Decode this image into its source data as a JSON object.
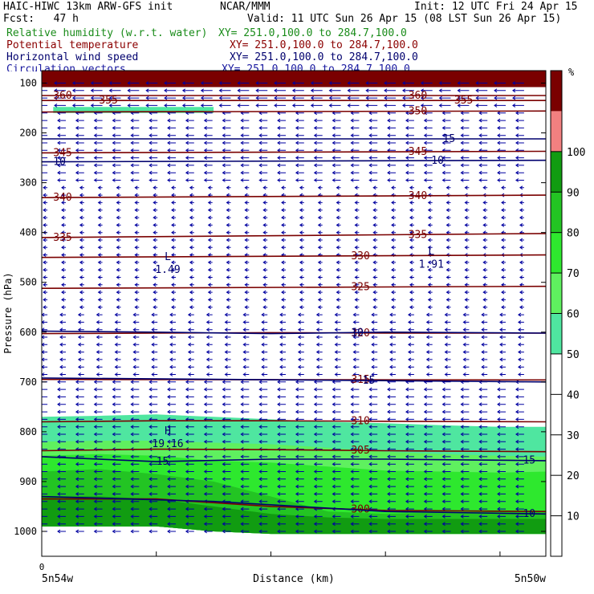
{
  "header": {
    "title_left": "HAIC-HIWC 13km ARW-GFS init",
    "title_center": "NCAR/MMM",
    "init": "Init: 12 UTC Fri 24 Apr 15",
    "fcst": "Fcst:   47 h",
    "valid": "Valid: 11 UTC Sun 26 Apr 15 (08 LST Sun 26 Apr 15)",
    "fields": [
      {
        "name": "Relative humidity (w.r.t. water)",
        "xy": "XY= 251.0,100.0 to 284.7,100.0",
        "color": "#1a8c1a"
      },
      {
        "name": "Potential temperature",
        "xy": "XY= 251.0,100.0 to 284.7,100.0",
        "color": "#8b0000"
      },
      {
        "name": "Horizontal wind speed",
        "xy": "XY= 251.0,100.0 to 284.7,100.0",
        "color": "#00006e"
      },
      {
        "name": "Circulation vectors",
        "xy": "XY= 251.0,100.0 to 284.7,100.0",
        "color": "#1a1aa0"
      }
    ]
  },
  "chart_data": {
    "type": "heatmap",
    "xlabel": "Distance (km)",
    "ylabel": "Pressure (hPa)",
    "x_tick_zero": "0",
    "x_start_label": "5n54w",
    "x_end_label": "5n50w",
    "x_range_km": [
      0,
      440
    ],
    "y_ticks": [
      100,
      200,
      300,
      400,
      500,
      600,
      700,
      800,
      900,
      1000
    ],
    "y_range_hPa": [
      75,
      1050
    ],
    "colorbar": {
      "unit": "%",
      "ticks": [
        10,
        20,
        30,
        40,
        50,
        60,
        70,
        80,
        90,
        100
      ],
      "bins": [
        {
          "from": 0,
          "to": 50,
          "color": "#ffffff"
        },
        {
          "from": 50,
          "to": 60,
          "color": "#4fe6a0"
        },
        {
          "from": 60,
          "to": 70,
          "color": "#5ff05f"
        },
        {
          "from": 70,
          "to": 80,
          "color": "#2ee82e"
        },
        {
          "from": 80,
          "to": 90,
          "color": "#23c423"
        },
        {
          "from": 90,
          "to": 100,
          "color": "#119c11"
        },
        {
          "from": 100,
          "to": 110,
          "color": "#f28080"
        },
        {
          "from": 110,
          "to": 120,
          "color": "#7a0000"
        }
      ]
    },
    "rh_layers": [
      {
        "bin": 50,
        "x": [
          0,
          50,
          100,
          150,
          200,
          250,
          300,
          350,
          400,
          440
        ],
        "top": [
          770,
          768,
          765,
          770,
          775,
          780,
          783,
          787,
          790,
          790
        ],
        "bottom": [
          990,
          990,
          990,
          1000,
          1005,
          1005,
          1005,
          1005,
          1005,
          1005
        ]
      },
      {
        "bin": 60,
        "x": [
          0,
          50,
          100,
          150,
          200,
          250,
          300,
          350,
          400,
          440
        ],
        "top": [
          820,
          818,
          818,
          822,
          825,
          832,
          840,
          845,
          848,
          850
        ],
        "bottom": [
          990,
          990,
          990,
          1000,
          1005,
          1005,
          1005,
          1005,
          1005,
          1005
        ]
      },
      {
        "bin": 70,
        "x": [
          0,
          50,
          100,
          150,
          200,
          250,
          300,
          350,
          400,
          440
        ],
        "top": [
          848,
          845,
          848,
          858,
          862,
          870,
          878,
          880,
          882,
          880
        ],
        "bottom": [
          990,
          990,
          990,
          1000,
          1005,
          1005,
          1005,
          1005,
          1005,
          1005
        ]
      },
      {
        "bin": 80,
        "x": [
          0,
          50,
          100,
          150,
          200,
          250,
          300,
          350,
          400,
          440
        ],
        "top": [
          880,
          875,
          885,
          900,
          930,
          960,
          965,
          962,
          960,
          960
        ],
        "bottom": [
          990,
          990,
          990,
          1000,
          1005,
          1005,
          1005,
          1005,
          1005,
          1005
        ]
      },
      {
        "bin": 90,
        "x": [
          0,
          50,
          100,
          150,
          200,
          250,
          300,
          350,
          400,
          440
        ],
        "top": [
          930,
          930,
          935,
          950,
          965,
          972,
          975,
          975,
          975,
          975
        ],
        "bottom": [
          990,
          990,
          990,
          1000,
          1005,
          1005,
          1005,
          1005,
          1005,
          1005
        ]
      },
      {
        "bin": 110,
        "x": [
          0,
          440
        ],
        "top": [
          75,
          75
        ],
        "bottom": [
          108,
          108
        ]
      },
      {
        "bin": 50,
        "x": [
          10,
          150
        ],
        "top": [
          148,
          148
        ],
        "bottom": [
          160,
          160
        ]
      }
    ],
    "theta_contours": [
      {
        "level": 300,
        "labels": [
          300
        ],
        "label_x": [
          270
        ],
        "x": [
          0,
          100,
          200,
          300,
          440
        ],
        "p": [
          935,
          935,
          950,
          958,
          960
        ]
      },
      {
        "level": 305,
        "labels": [
          305
        ],
        "label_x": [
          270
        ],
        "x": [
          0,
          100,
          200,
          300,
          440
        ],
        "p": [
          838,
          835,
          836,
          838,
          840
        ]
      },
      {
        "level": 310,
        "labels": [
          310
        ],
        "label_x": [
          270
        ],
        "x": [
          0,
          100,
          200,
          300,
          440
        ],
        "p": [
          780,
          778,
          778,
          779,
          780
        ]
      },
      {
        "level": 315,
        "labels": [
          315
        ],
        "label_x": [
          270
        ],
        "x": [
          0,
          440
        ],
        "p": [
          695,
          696
        ]
      },
      {
        "level": 320,
        "labels": [
          320
        ],
        "label_x": [
          270
        ],
        "x": [
          0,
          100,
          200,
          300,
          440
        ],
        "p": [
          603,
          602,
          601,
          602,
          602
        ]
      },
      {
        "level": 325,
        "labels": [
          325
        ],
        "label_x": [
          270
        ],
        "x": [
          0,
          440
        ],
        "p": [
          512,
          508
        ]
      },
      {
        "level": 330,
        "labels": [
          330
        ],
        "label_x": [
          270
        ],
        "x": [
          0,
          440
        ],
        "p": [
          450,
          445
        ]
      },
      {
        "level": 335,
        "labels": [
          335,
          335
        ],
        "label_x": [
          10,
          320
        ],
        "x": [
          0,
          440
        ],
        "p": [
          410,
          402
        ]
      },
      {
        "level": 340,
        "labels": [
          340,
          340
        ],
        "label_x": [
          10,
          320
        ],
        "x": [
          0,
          440
        ],
        "p": [
          330,
          325
        ]
      },
      {
        "level": 345,
        "labels": [
          345,
          345
        ],
        "label_x": [
          10,
          320
        ],
        "x": [
          0,
          440
        ],
        "p": [
          240,
          237
        ]
      },
      {
        "level": 350,
        "labels": [
          350
        ],
        "label_x": [
          320
        ],
        "x": [
          0,
          440
        ],
        "p": [
          158,
          156
        ]
      },
      {
        "level": 355,
        "labels": [
          355,
          355
        ],
        "label_x": [
          50,
          360
        ],
        "x": [
          0,
          440
        ],
        "p": [
          135,
          135
        ]
      },
      {
        "level": 360,
        "labels": [
          360,
          360
        ],
        "label_x": [
          10,
          320
        ],
        "x": [
          0,
          440
        ],
        "p": [
          125,
          125
        ]
      }
    ],
    "wind_speed_contours": [
      {
        "level": 10,
        "labels": [
          10
        ],
        "label_x": [
          420
        ],
        "x": [
          0,
          150,
          300,
          440
        ],
        "p": [
          930,
          940,
          960,
          965
        ]
      },
      {
        "level": 15,
        "labels": [
          15,
          15
        ],
        "label_x": [
          100,
          420
        ],
        "x": [
          0,
          100,
          200,
          300,
          440
        ],
        "p": [
          850,
          860,
          855,
          855,
          858
        ]
      },
      {
        "level": 10,
        "labels": [
          10
        ],
        "label_x": [
          270
        ],
        "x": [
          0,
          100,
          200,
          300,
          440
        ],
        "p": [
          598,
          600,
          603,
          600,
          602
        ]
      },
      {
        "level": 15,
        "labels": [
          15
        ],
        "label_x": [
          280
        ],
        "x": [
          0,
          440
        ],
        "p": [
          692,
          700
        ]
      },
      {
        "level": 10,
        "labels": [
          10,
          10
        ],
        "label_x": [
          10,
          340
        ],
        "x": [
          0,
          440
        ],
        "p": [
          258,
          255
        ]
      },
      {
        "level": 15,
        "labels": [
          15
        ],
        "label_x": [
          350
        ],
        "x": [
          0,
          440
        ],
        "p": [
          212,
          212
        ]
      }
    ],
    "extrema": [
      {
        "symbol": "L",
        "value": "1.49",
        "x": 110,
        "p": 455
      },
      {
        "symbol": "L",
        "value": "1.91",
        "x": 340,
        "p": 445
      },
      {
        "symbol": "H",
        "value": "19.16",
        "x": 110,
        "p": 805
      }
    ],
    "vectors": {
      "note": "circulation vectors point westward",
      "layers": [
        {
          "p_from": 85,
          "p_to": 160,
          "u": -14
        },
        {
          "p_from": 160,
          "p_to": 300,
          "u": -10
        },
        {
          "p_from": 300,
          "p_to": 560,
          "u": -5
        },
        {
          "p_from": 560,
          "p_to": 700,
          "u": -7
        },
        {
          "p_from": 700,
          "p_to": 1000,
          "u": -10
        }
      ]
    }
  }
}
